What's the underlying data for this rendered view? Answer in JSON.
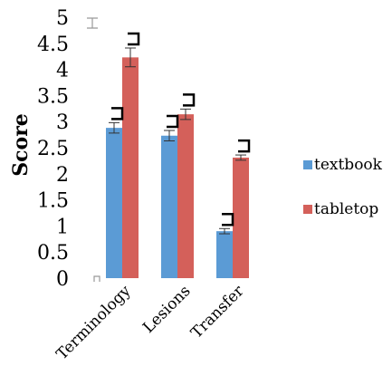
{
  "chart_data": {
    "type": "bar",
    "title": "",
    "xlabel": "",
    "ylabel": "Score",
    "ylim": [
      0,
      5
    ],
    "yticks": [
      "0",
      "0.5",
      "1",
      "1.5",
      "2",
      "2.5",
      "3",
      "3.5",
      "4",
      "4.5",
      "5"
    ],
    "categories": [
      "Terminology",
      "Lesions",
      "Transfer"
    ],
    "series": [
      {
        "name": "textbook",
        "color": "#5b9bd5",
        "values": [
          2.88,
          2.73,
          0.9
        ],
        "error": [
          0.1,
          0.1,
          0.05
        ]
      },
      {
        "name": "tabletop",
        "color": "#d4605a",
        "values": [
          4.23,
          3.14,
          2.31
        ],
        "error": [
          0.18,
          0.1,
          0.05
        ]
      }
    ],
    "grid": false,
    "legend_position": "right"
  }
}
